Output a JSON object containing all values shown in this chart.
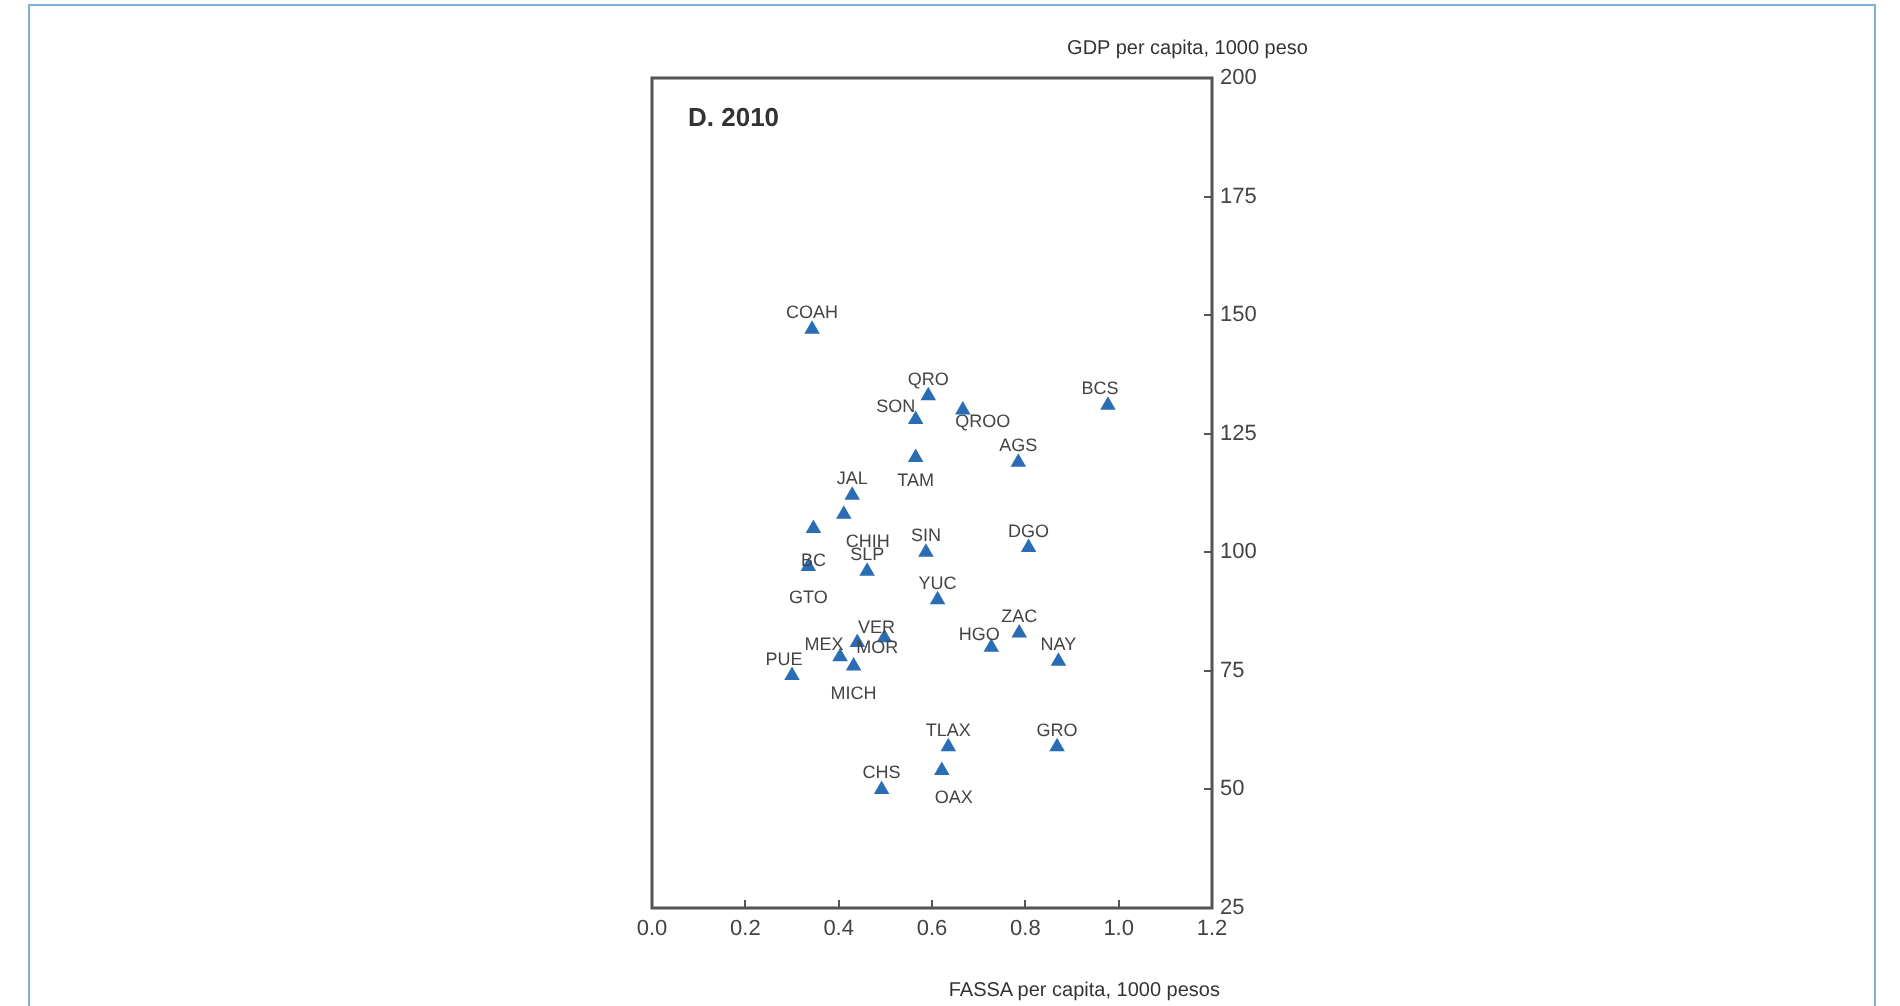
{
  "chart_data": {
    "type": "scatter",
    "title": "D. 2010",
    "xlabel": "FASSA per capita, 1000 pesos",
    "ylabel": "GDP per capita, 1000 peso",
    "xlim": [
      0,
      1.2
    ],
    "xticks": [
      {
        "value": 0,
        "label": "0.0"
      },
      {
        "value": 0.2,
        "label": "0.2"
      },
      {
        "value": 0.4,
        "label": "0.4"
      },
      {
        "value": 0.6,
        "label": "0.6"
      },
      {
        "value": 0.8,
        "label": "0.8"
      },
      {
        "value": 1,
        "label": "1.0"
      },
      {
        "value": 1.2,
        "label": "1.2"
      }
    ],
    "ylim": [
      25,
      200
    ],
    "yticks": [
      25,
      50,
      75,
      100,
      125,
      150,
      175,
      200
    ],
    "marker": "triangle",
    "legend": false,
    "series": [
      {
        "color": "#2a6db5",
        "x": [
          0.343,
          0.592,
          0.666,
          0.977,
          0.565,
          0.565,
          0.785,
          0.429,
          0.411,
          0.346,
          0.335,
          0.461,
          0.587,
          0.807,
          0.612,
          0.787,
          0.727,
          0.871,
          0.498,
          0.403,
          0.44,
          0.432,
          0.3,
          0.635,
          0.868,
          0.621,
          0.492
        ],
        "values": [
          147,
          133,
          130,
          131,
          128,
          120,
          119,
          112,
          108,
          105,
          97,
          96,
          100,
          101,
          90,
          83,
          80,
          77,
          82,
          78,
          81,
          76,
          74,
          59,
          59,
          54,
          50
        ]
      }
    ],
    "annotations": [
      {
        "text": "COAH",
        "x": 0.343,
        "y": 147
      },
      {
        "text": "QRO",
        "x": 0.592,
        "y": 133
      },
      {
        "text": "QROO",
        "x": 0.666,
        "y": 130
      },
      {
        "text": "BCS",
        "x": 0.977,
        "y": 131
      },
      {
        "text": "SON",
        "x": 0.565,
        "y": 128
      },
      {
        "text": "TAM",
        "x": 0.565,
        "y": 120
      },
      {
        "text": "AGS",
        "x": 0.785,
        "y": 119
      },
      {
        "text": "JAL",
        "x": 0.429,
        "y": 112
      },
      {
        "text": "CHIH",
        "x": 0.411,
        "y": 108
      },
      {
        "text": "BC",
        "x": 0.346,
        "y": 105
      },
      {
        "text": "GTO",
        "x": 0.335,
        "y": 97
      },
      {
        "text": "SLP",
        "x": 0.461,
        "y": 96
      },
      {
        "text": "SIN",
        "x": 0.587,
        "y": 100
      },
      {
        "text": "DGO",
        "x": 0.807,
        "y": 101
      },
      {
        "text": "YUC",
        "x": 0.612,
        "y": 90
      },
      {
        "text": "ZAC",
        "x": 0.787,
        "y": 83
      },
      {
        "text": "HGO",
        "x": 0.727,
        "y": 80
      },
      {
        "text": "NAY",
        "x": 0.871,
        "y": 77
      },
      {
        "text": "VER",
        "x": 0.498,
        "y": 82
      },
      {
        "text": "MEX",
        "x": 0.403,
        "y": 78
      },
      {
        "text": "MOR",
        "x": 0.44,
        "y": 81
      },
      {
        "text": "MICH",
        "x": 0.432,
        "y": 76
      },
      {
        "text": "PUE",
        "x": 0.3,
        "y": 74
      },
      {
        "text": "TLAX",
        "x": 0.635,
        "y": 59
      },
      {
        "text": "GRO",
        "x": 0.868,
        "y": 59
      },
      {
        "text": "OAX",
        "x": 0.621,
        "y": 54
      },
      {
        "text": "CHS",
        "x": 0.492,
        "y": 50
      }
    ]
  }
}
